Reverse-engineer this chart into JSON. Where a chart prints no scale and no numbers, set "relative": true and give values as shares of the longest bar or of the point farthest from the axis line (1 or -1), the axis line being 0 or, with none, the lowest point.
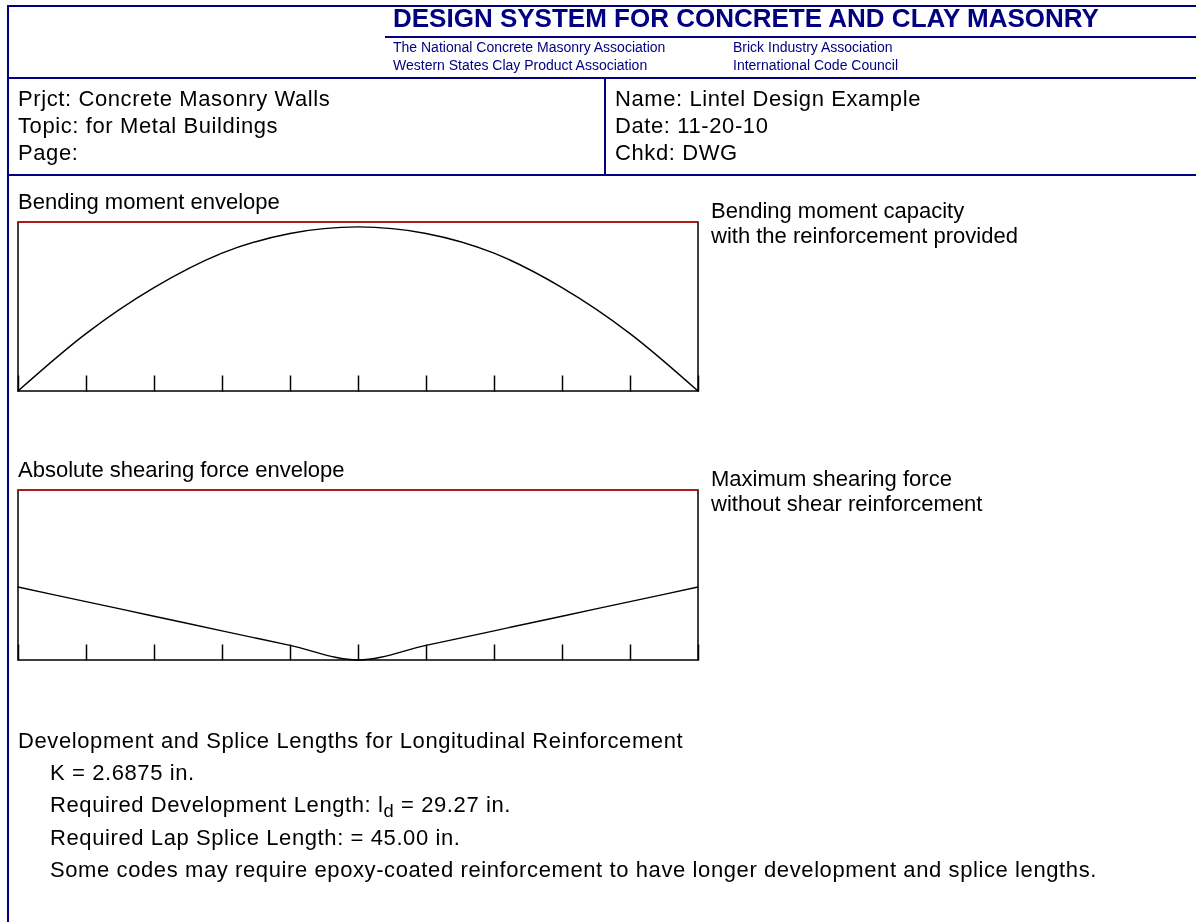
{
  "chart_data": [
    {
      "type": "line",
      "title": "Bending moment envelope",
      "categories": [
        null,
        null,
        null,
        null,
        null,
        null,
        null,
        null,
        null,
        null,
        null
      ],
      "relative": true,
      "values": [
        0,
        0.35,
        0.63,
        0.84,
        0.96,
        1,
        0.96,
        0.84,
        0.63,
        0.35,
        0
      ],
      "color": "#000000",
      "ref_lines": [
        {
          "axis": "y",
          "value": 1.03,
          "label": "Bending moment capacity\nwith the reinforcement provided",
          "color": "#d01010"
        }
      ],
      "annotations": [
        "DESIGN SYSTEM FOR CONCRETE AND CLAY MASONRY",
        "The National Concrete Masonry Association",
        "Brick Industry Association",
        "Western States Clay Product Association",
        "International Code Council",
        "Prjct: Concrete Masonry Walls",
        "Topic: for Metal Buildings",
        "Page:",
        "Name: Lintel Design Example",
        "Date: 11-20-10",
        "Chkd: DWG"
      ]
    },
    {
      "type": "line",
      "title": "Absolute shearing force envelope",
      "categories": [
        null,
        null,
        null,
        null,
        null,
        null,
        null,
        null,
        null,
        null,
        null
      ],
      "relative": true,
      "values": [
        1,
        0.8,
        0.6,
        0.4,
        0.2,
        0,
        0.2,
        0.4,
        0.6,
        0.8,
        1
      ],
      "color": "#000000",
      "ref_lines": [
        {
          "axis": "y",
          "value": 2.33,
          "label": "Maximum shearing force\nwithout shear reinforcement",
          "color": "#d01010"
        }
      ],
      "annotations": [
        "Development and Splice Lengths for Longitudinal Reinforcement",
        "K = 2.6875 in.",
        "Required Development Length: l$_{d}$ = 29.27 in.",
        "Required Lap Splice Length: = 45.00 in.",
        "Some codes may require epoxy-coated reinforcement to have longer development and splice lengths."
      ]
    }
  ]
}
